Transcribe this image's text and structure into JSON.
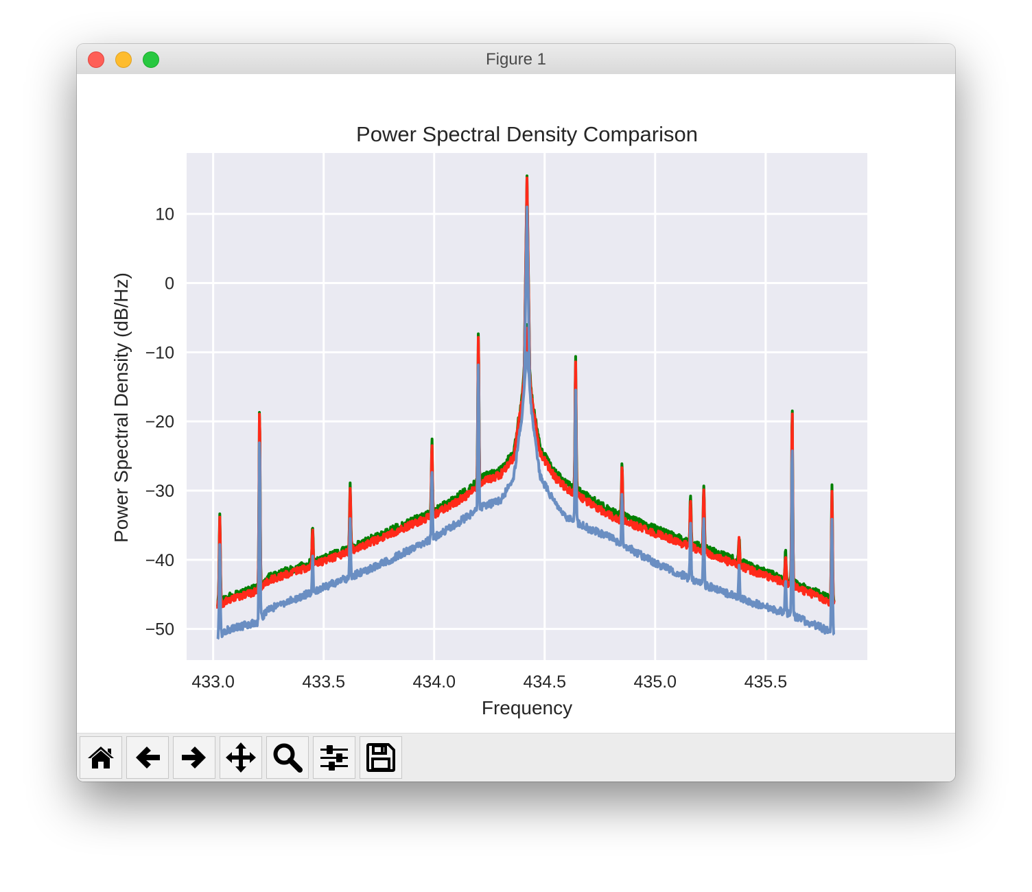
{
  "window": {
    "title": "Figure 1"
  },
  "toolbar": {
    "buttons": [
      {
        "name": "home",
        "icon": "home-icon"
      },
      {
        "name": "back",
        "icon": "arrow-left-icon"
      },
      {
        "name": "forward",
        "icon": "arrow-right-icon"
      },
      {
        "name": "pan",
        "icon": "move-icon"
      },
      {
        "name": "zoom",
        "icon": "magnifier-icon"
      },
      {
        "name": "configure-subplots",
        "icon": "sliders-icon"
      },
      {
        "name": "save",
        "icon": "floppy-disk-icon"
      }
    ]
  },
  "colors": {
    "plot_background": "#eaeaf2",
    "grid": "#ffffff",
    "series_green": "#008000",
    "series_red": "#ff2a1a",
    "series_blue": "#6a8ec2"
  },
  "chart_data": {
    "type": "line",
    "title": "Power Spectral Density Comparison",
    "xlabel": "Frequency",
    "ylabel": "Power Spectral Density (dB/Hz)",
    "xlim": [
      432.88,
      435.96
    ],
    "ylim": [
      -54.5,
      18.8
    ],
    "xticks": [
      433.0,
      433.5,
      434.0,
      434.5,
      435.0,
      435.5
    ],
    "xtick_labels": [
      "433.0",
      "433.5",
      "434.0",
      "434.5",
      "435.0",
      "435.5"
    ],
    "yticks": [
      -50,
      -40,
      -30,
      -20,
      -10,
      0,
      10
    ],
    "ytick_labels": [
      "−50",
      "−40",
      "−30",
      "−20",
      "−10",
      "0",
      "10"
    ],
    "grid": true,
    "x_range": [
      433.02,
      435.81
    ],
    "center": 434.42,
    "series": [
      {
        "color": "#008000",
        "baseline": [
          [
            433.02,
            -46.3
          ],
          [
            433.06,
            -45.5
          ],
          [
            433.2,
            -44.0
          ],
          [
            433.25,
            -42.5
          ],
          [
            433.5,
            -39.8
          ],
          [
            433.75,
            -36.5
          ],
          [
            434.0,
            -33.0
          ],
          [
            434.15,
            -30.0
          ],
          [
            434.22,
            -28.0
          ],
          [
            434.3,
            -27.0
          ],
          [
            434.36,
            -24.5
          ],
          [
            434.4,
            -16.0
          ],
          [
            434.42,
            -6.0
          ],
          [
            434.44,
            -16.0
          ],
          [
            434.48,
            -24.0
          ],
          [
            434.55,
            -27.5
          ],
          [
            434.6,
            -29.0
          ],
          [
            434.7,
            -31.0
          ],
          [
            434.8,
            -33.0
          ],
          [
            435.0,
            -35.5
          ],
          [
            435.2,
            -38.0
          ],
          [
            435.4,
            -40.5
          ],
          [
            435.6,
            -43.0
          ],
          [
            435.75,
            -45.0
          ],
          [
            435.81,
            -46.0
          ]
        ],
        "peaks": [
          [
            433.03,
            -33.5
          ],
          [
            433.21,
            -18.0
          ],
          [
            433.45,
            -35.0
          ],
          [
            433.62,
            -29.0
          ],
          [
            433.99,
            -22.5
          ],
          [
            434.2,
            -7.0
          ],
          [
            434.42,
            15.5
          ],
          [
            434.64,
            -10.8
          ],
          [
            434.85,
            -26.0
          ],
          [
            435.16,
            -30.5
          ],
          [
            435.22,
            -29.0
          ],
          [
            435.38,
            -36.5
          ],
          [
            435.59,
            -38.5
          ],
          [
            435.62,
            -18.0
          ],
          [
            435.8,
            -29.5
          ]
        ]
      },
      {
        "color": "#ff2a1a",
        "baseline": [
          [
            433.02,
            -46.6
          ],
          [
            433.06,
            -46.0
          ],
          [
            433.2,
            -44.5
          ],
          [
            433.25,
            -43.0
          ],
          [
            433.5,
            -40.3
          ],
          [
            433.75,
            -37.0
          ],
          [
            434.0,
            -33.5
          ],
          [
            434.15,
            -30.7
          ],
          [
            434.22,
            -28.7
          ],
          [
            434.3,
            -27.7
          ],
          [
            434.36,
            -25.2
          ],
          [
            434.4,
            -16.5
          ],
          [
            434.42,
            -6.5
          ],
          [
            434.44,
            -16.5
          ],
          [
            434.48,
            -24.7
          ],
          [
            434.55,
            -28.2
          ],
          [
            434.6,
            -29.7
          ],
          [
            434.7,
            -31.7
          ],
          [
            434.8,
            -33.7
          ],
          [
            435.0,
            -36.2
          ],
          [
            435.2,
            -38.6
          ],
          [
            435.4,
            -41.1
          ],
          [
            435.6,
            -43.5
          ],
          [
            435.75,
            -45.5
          ],
          [
            435.81,
            -46.4
          ]
        ],
        "peaks": [
          [
            433.03,
            -34.0
          ],
          [
            433.21,
            -18.3
          ],
          [
            433.45,
            -35.5
          ],
          [
            433.62,
            -29.7
          ],
          [
            433.99,
            -23.3
          ],
          [
            434.2,
            -7.5
          ],
          [
            434.42,
            15.2
          ],
          [
            434.64,
            -11.5
          ],
          [
            434.85,
            -26.6
          ],
          [
            435.16,
            -31.0
          ],
          [
            435.22,
            -29.7
          ],
          [
            435.38,
            -37.2
          ],
          [
            435.59,
            -39.0
          ],
          [
            435.62,
            -18.5
          ],
          [
            435.8,
            -30.2
          ]
        ]
      },
      {
        "color": "#6a8ec2",
        "baseline": [
          [
            433.02,
            -51.0
          ],
          [
            433.06,
            -50.2
          ],
          [
            433.2,
            -49.0
          ],
          [
            433.25,
            -47.2
          ],
          [
            433.5,
            -44.0
          ],
          [
            433.75,
            -40.8
          ],
          [
            434.0,
            -36.8
          ],
          [
            434.15,
            -33.8
          ],
          [
            434.2,
            -32.5
          ],
          [
            434.3,
            -31.5
          ],
          [
            434.36,
            -28.0
          ],
          [
            434.4,
            -18.5
          ],
          [
            434.42,
            -9.5
          ],
          [
            434.44,
            -18.5
          ],
          [
            434.48,
            -28.0
          ],
          [
            434.55,
            -32.0
          ],
          [
            434.6,
            -33.8
          ],
          [
            434.7,
            -35.5
          ],
          [
            434.8,
            -36.8
          ],
          [
            435.0,
            -40.5
          ],
          [
            435.2,
            -43.3
          ],
          [
            435.4,
            -45.8
          ],
          [
            435.6,
            -47.8
          ],
          [
            435.75,
            -49.8
          ],
          [
            435.81,
            -50.8
          ]
        ],
        "peaks": [
          [
            433.03,
            -38.0
          ],
          [
            433.21,
            -22.5
          ],
          [
            433.45,
            -39.5
          ],
          [
            433.62,
            -34.0
          ],
          [
            433.99,
            -27.0
          ],
          [
            434.2,
            -11.5
          ],
          [
            434.42,
            11.0
          ],
          [
            434.64,
            -15.5
          ],
          [
            434.85,
            -30.5
          ],
          [
            435.16,
            -35.0
          ],
          [
            435.22,
            -34.0
          ],
          [
            435.38,
            -41.0
          ],
          [
            435.59,
            -43.0
          ],
          [
            435.62,
            -22.8
          ],
          [
            435.8,
            -34.0
          ]
        ]
      }
    ]
  }
}
